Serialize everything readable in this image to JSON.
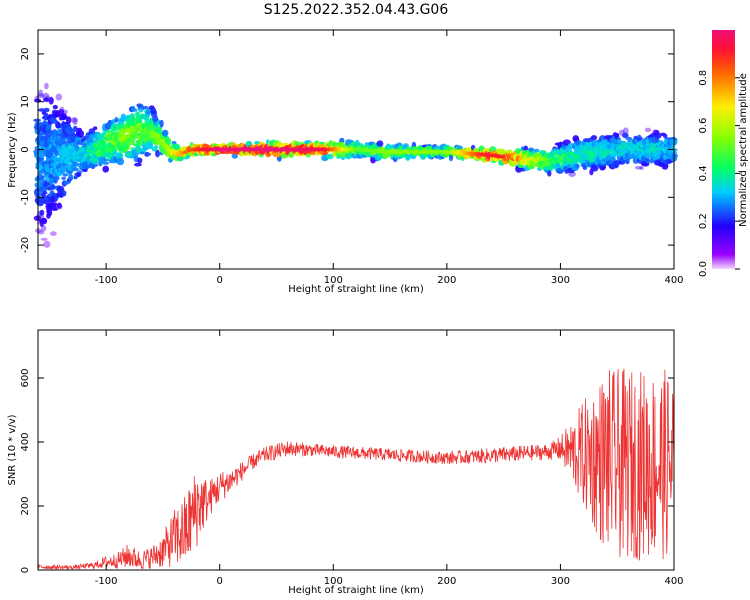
{
  "title": "S125.2022.352.04.43.G06",
  "colorbar": {
    "label": "Normalized spectral amplitude",
    "ticks": [
      0.0,
      0.2,
      0.4,
      0.6,
      0.8
    ],
    "tick_labels": [
      "0.0",
      "0.2",
      "0.4",
      "0.6",
      "0.8"
    ],
    "range": [
      0,
      1
    ]
  },
  "chart_data": [
    {
      "type": "heatmap",
      "xlabel": "Height of straight line (km)",
      "ylabel": "Frequency (Hz)",
      "xlim": [
        -160,
        400
      ],
      "ylim": [
        -25,
        25
      ],
      "xticks": [
        -100,
        0,
        100,
        200,
        300,
        400
      ],
      "xtick_labels": [
        "-100",
        "0",
        "100",
        "200",
        "300",
        "400"
      ],
      "yticks": [
        -20,
        -10,
        0,
        10,
        20
      ],
      "ytick_labels": [
        "-20",
        "-10",
        "0",
        "10",
        "20"
      ],
      "colormap": "rainbow",
      "ridge": {
        "x": [
          -150,
          -120,
          -100,
          -80,
          -65,
          -55,
          -45,
          -35,
          -25,
          -10,
          0,
          20,
          50,
          90,
          120,
          150,
          200,
          230,
          250,
          270,
          290,
          320,
          360,
          400
        ],
        "freq": [
          -2,
          -1,
          1,
          3,
          4,
          3,
          0,
          -1,
          0,
          0,
          0,
          0,
          0,
          0,
          0,
          -0.5,
          -0.5,
          -1,
          -1.5,
          -2,
          -2.5,
          -1,
          0,
          0
        ],
        "amplitude": [
          0.3,
          0.35,
          0.5,
          0.55,
          0.5,
          0.55,
          0.6,
          0.75,
          0.85,
          0.95,
          1.0,
          1.0,
          1.0,
          0.95,
          0.5,
          0.55,
          0.55,
          0.9,
          0.9,
          0.75,
          0.5,
          0.4,
          0.35,
          0.35
        ],
        "spread": [
          20,
          6,
          6,
          8,
          8,
          5,
          3,
          2,
          1.5,
          1.5,
          1.5,
          1.5,
          2,
          2,
          2.5,
          2,
          1.5,
          1.5,
          2,
          2.5,
          3.5,
          5,
          5,
          5
        ]
      }
    },
    {
      "type": "line",
      "xlabel": "Height of straight line (km)",
      "ylabel": "SNR (10 * v/v)",
      "xlim": [
        -160,
        400
      ],
      "ylim": [
        0,
        750
      ],
      "xticks": [
        -100,
        0,
        100,
        200,
        300,
        400
      ],
      "xtick_labels": [
        "-100",
        "0",
        "100",
        "200",
        "300",
        "400"
      ],
      "yticks": [
        0,
        200,
        400,
        600
      ],
      "ytick_labels": [
        "0",
        "200",
        "400",
        "600"
      ],
      "color": "#ee3333",
      "envelope": {
        "x": [
          -160,
          -130,
          -110,
          -100,
          -90,
          -80,
          -70,
          -60,
          -50,
          -40,
          -30,
          -20,
          -10,
          0,
          10,
          20,
          30,
          40,
          50,
          60,
          80,
          100,
          150,
          200,
          250,
          290,
          300,
          310,
          320,
          330,
          340,
          350,
          360,
          380,
          400
        ],
        "mean": [
          10,
          8,
          15,
          25,
          30,
          45,
          30,
          40,
          60,
          100,
          120,
          200,
          220,
          260,
          280,
          310,
          340,
          360,
          370,
          380,
          375,
          370,
          360,
          350,
          360,
          370,
          380,
          370,
          360,
          350,
          340,
          330,
          330,
          330,
          330
        ],
        "amp": [
          8,
          6,
          10,
          20,
          25,
          40,
          30,
          35,
          55,
          90,
          120,
          130,
          60,
          50,
          40,
          30,
          25,
          25,
          25,
          25,
          20,
          20,
          20,
          20,
          25,
          25,
          40,
          100,
          170,
          230,
          290,
          300,
          300,
          300,
          300
        ]
      }
    }
  ]
}
